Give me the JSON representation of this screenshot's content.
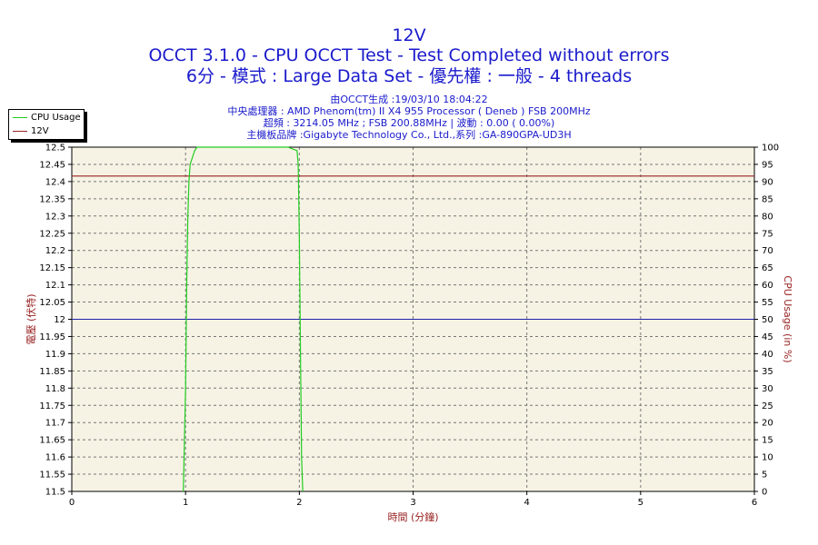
{
  "header": {
    "title": "12V",
    "subtitle": "OCCT 3.1.0 - CPU OCCT Test - Test Completed without errors",
    "test_info": "6分 - 模式 : Large Data Set - 優先權 : 一般 - 4 threads",
    "generated": "由OCCT生成 :19/03/10 18:04:22",
    "cpu": "中央處理器 : AMD Phenom(tm) II X4 955 Processor ( Deneb ) FSB 200MHz",
    "clock": "超頻 : 3214.05 MHz ; FSB 200.88MHz | 波動 : 0.00 ( 0.00%)",
    "motherboard": "主機板品牌 :Gigabyte Technology Co., Ltd.,系列 :GA-890GPA-UD3H"
  },
  "legend": [
    {
      "label": "CPU Usage",
      "color": "#22cc22"
    },
    {
      "label": "12V",
      "color": "#992222"
    }
  ],
  "colors": {
    "plot_background": "#f6f3e4",
    "grid": "#777777",
    "axis_text": "#000000",
    "axis_label": "#992222",
    "cpu_line": "#22cc22",
    "voltage_line": "#992222",
    "reference_line": "#2222aa",
    "title": "#1a1acc"
  },
  "chart_data": {
    "type": "line",
    "xlabel": "時間 (分鐘)",
    "ylabel_left": "電壓 (伏特)",
    "ylabel_right": "CPU Usage (in %)",
    "xlim": [
      0,
      6
    ],
    "ylim_left": [
      11.5,
      12.5
    ],
    "ylim_right": [
      0,
      100
    ],
    "x_ticks": [
      "0",
      "1",
      "2",
      "3",
      "4",
      "5",
      "6"
    ],
    "y_ticks_left": [
      "11.5",
      "11.55",
      "11.6",
      "11.65",
      "11.7",
      "11.75",
      "11.8",
      "11.85",
      "11.9",
      "11.95",
      "12",
      "12.05",
      "12.1",
      "12.15",
      "12.2",
      "12.25",
      "12.3",
      "12.35",
      "12.4",
      "12.45",
      "12.5"
    ],
    "y_ticks_right": [
      "0",
      "5",
      "10",
      "15",
      "20",
      "25",
      "30",
      "35",
      "40",
      "45",
      "50",
      "55",
      "60",
      "65",
      "70",
      "75",
      "80",
      "85",
      "90",
      "95",
      "100"
    ],
    "grid": true,
    "legend_position": "top-left",
    "reference_y_left": 12.0,
    "series": [
      {
        "name": "12V",
        "axis": "left",
        "x": [
          0,
          6
        ],
        "y": [
          12.416,
          12.416
        ]
      },
      {
        "name": "CPU Usage",
        "axis": "right",
        "x": [
          0.98,
          1.0,
          1.01,
          1.02,
          1.03,
          1.04,
          1.06,
          1.08,
          1.1,
          1.15,
          1.3,
          1.5,
          1.7,
          1.9,
          1.98,
          1.99,
          2.0,
          2.01,
          2.02,
          2.03
        ],
        "y": [
          0,
          30,
          60,
          80,
          90,
          95,
          97,
          99,
          100,
          100,
          100,
          100,
          100,
          100,
          99,
          95,
          75,
          40,
          10,
          0
        ]
      }
    ]
  }
}
